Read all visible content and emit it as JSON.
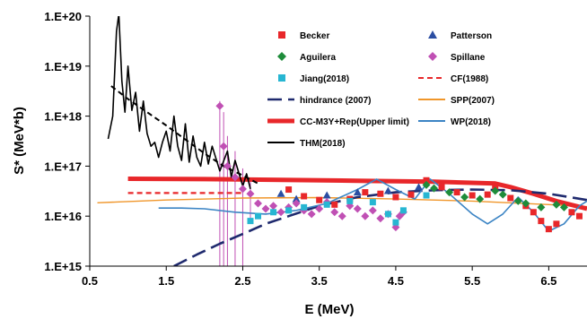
{
  "chart_data": {
    "type": "scatter",
    "xlabel": "E (MeV)",
    "ylabel": "S* (MeV*b)",
    "xlim": [
      0.5,
      7.0
    ],
    "ylim": [
      1000000000000000.0,
      1e+20
    ],
    "yscale": "log",
    "x_ticks": [
      "0.5",
      "1.5",
      "2.5",
      "3.5",
      "4.5",
      "5.5",
      "6.5"
    ],
    "y_ticks": [
      "1.E+15",
      "1.E+16",
      "1.E+17",
      "1.E+18",
      "1.E+19",
      "1.E+20"
    ],
    "grid": false,
    "legend_placement": "top-right",
    "series": [
      {
        "name": "Becker",
        "kind": "marker",
        "marker": "square",
        "color": "#e8272a",
        "points": [
          [
            3.1,
            3.4e+16
          ],
          [
            3.3,
            2.5e+16
          ],
          [
            3.5,
            2.1e+16
          ],
          [
            3.7,
            1.7e+16
          ],
          [
            3.9,
            2.2e+16
          ],
          [
            4.1,
            3e+16
          ],
          [
            4.3,
            2.8e+16
          ],
          [
            4.5,
            2.4e+16
          ],
          [
            4.7,
            2.7e+16
          ],
          [
            4.9,
            5.2e+16
          ],
          [
            5.1,
            3.8e+16
          ],
          [
            5.3,
            3e+16
          ],
          [
            5.5,
            2.6e+16
          ],
          [
            5.7,
            2.7e+16
          ],
          [
            5.8,
            4e+16
          ],
          [
            6.0,
            2.3e+16
          ],
          [
            6.2,
            1.6e+16
          ],
          [
            6.3,
            1.2e+16
          ],
          [
            6.4,
            8000000000000000.0
          ],
          [
            6.5,
            5500000000000000.0
          ],
          [
            6.6,
            7000000000000000.0
          ],
          [
            6.8,
            1.2e+16
          ],
          [
            6.9,
            1e+16
          ]
        ]
      },
      {
        "name": "Patterson",
        "kind": "marker",
        "marker": "triangle",
        "color": "#2b4ea2",
        "points": [
          [
            3.0,
            2.8e+16
          ],
          [
            3.2,
            2.2e+16
          ],
          [
            3.6,
            2.6e+16
          ],
          [
            4.0,
            3e+16
          ],
          [
            4.4,
            3.2e+16
          ],
          [
            4.8,
            3.8e+16
          ]
        ]
      },
      {
        "name": "Aguilera",
        "kind": "marker",
        "marker": "diamond",
        "color": "#1e8c3a",
        "points": [
          [
            4.9,
            4.2e+16
          ],
          [
            5.0,
            3.6e+16
          ],
          [
            5.2,
            3e+16
          ],
          [
            5.4,
            2.4e+16
          ],
          [
            5.6,
            2.2e+16
          ],
          [
            5.8,
            3.2e+16
          ],
          [
            5.9,
            2.7e+16
          ],
          [
            6.1,
            2e+16
          ],
          [
            6.2,
            1.8e+16
          ],
          [
            6.4,
            1.5e+16
          ],
          [
            6.6,
            1.7e+16
          ],
          [
            6.7,
            1.5e+16
          ]
        ]
      },
      {
        "name": "Spillane",
        "kind": "marker",
        "marker": "diamond",
        "color": "#c050b4",
        "points": [
          [
            2.2,
            1.6e+18
          ],
          [
            2.25,
            2.5e+17
          ],
          [
            2.3,
            1e+17
          ],
          [
            2.4,
            6e+16
          ],
          [
            2.5,
            3.5e+16
          ],
          [
            2.6,
            2.8e+16
          ],
          [
            2.7,
            1.8e+16
          ],
          [
            2.8,
            1.4e+16
          ],
          [
            2.9,
            1.6e+16
          ],
          [
            3.0,
            1.2e+16
          ],
          [
            3.1,
            1.5e+16
          ],
          [
            3.2,
            1.8e+16
          ],
          [
            3.3,
            1.3e+16
          ],
          [
            3.4,
            1.1e+16
          ],
          [
            3.5,
            1.4e+16
          ],
          [
            3.6,
            1.9e+16
          ],
          [
            3.7,
            1.2e+16
          ],
          [
            3.8,
            1e+16
          ],
          [
            3.9,
            1.6e+16
          ],
          [
            4.0,
            1.4e+16
          ],
          [
            4.1,
            1e+16
          ],
          [
            4.2,
            1.3e+16
          ],
          [
            4.3,
            9000000000000000.0
          ],
          [
            4.4,
            1.1e+16
          ],
          [
            4.5,
            6000000000000000.0
          ],
          [
            4.55,
            1e+16
          ],
          [
            4.6,
            1.2e+16
          ]
        ]
      },
      {
        "name": "Jiang(2018)",
        "kind": "marker",
        "marker": "square",
        "color": "#27b6d2",
        "points": [
          [
            2.6,
            8000000000000000.0
          ],
          [
            2.7,
            1e+16
          ],
          [
            2.9,
            1.2e+16
          ],
          [
            3.1,
            1.3e+16
          ],
          [
            3.3,
            1.5e+16
          ],
          [
            3.6,
            1.7e+16
          ],
          [
            3.9,
            2e+16
          ],
          [
            4.2,
            1.9e+16
          ],
          [
            4.4,
            1.1e+16
          ],
          [
            4.5,
            7500000000000000.0
          ],
          [
            4.6,
            1.3e+16
          ],
          [
            4.9,
            2.6e+16
          ]
        ]
      },
      {
        "name": "CF(1988)",
        "kind": "line",
        "style": "dashed",
        "color": "#e8272a",
        "width": 2.2,
        "points": [
          [
            1.0,
            2.9e+16
          ],
          [
            2.5,
            2.9e+16
          ]
        ]
      },
      {
        "name": "hindrance (2007)",
        "kind": "line",
        "style": "longdash",
        "color": "#1f2a6e",
        "width": 2.6,
        "points": [
          [
            1.6,
            1000000000000000.0
          ],
          [
            1.9,
            1700000000000000.0
          ],
          [
            2.2,
            2800000000000000.0
          ],
          [
            2.5,
            4400000000000000.0
          ],
          [
            2.8,
            7000000000000000.0
          ],
          [
            3.1,
            1e+16
          ],
          [
            3.5,
            1.6e+16
          ],
          [
            4.0,
            2.4e+16
          ],
          [
            4.5,
            3e+16
          ],
          [
            5.0,
            3.3e+16
          ],
          [
            5.5,
            3.4e+16
          ],
          [
            6.0,
            3.3e+16
          ],
          [
            6.5,
            2.8e+16
          ],
          [
            7.0,
            2.1e+16
          ]
        ]
      },
      {
        "name": "SPP(2007)",
        "kind": "line",
        "style": "solid",
        "color": "#f0962a",
        "width": 1.4,
        "points": [
          [
            0.6,
            1.85e+16
          ],
          [
            1.5,
            2.1e+16
          ],
          [
            2.5,
            2.3e+16
          ],
          [
            3.5,
            2.35e+16
          ],
          [
            4.5,
            2.2e+16
          ],
          [
            5.5,
            2e+16
          ],
          [
            6.5,
            1.7e+16
          ],
          [
            7.0,
            1.55e+16
          ]
        ]
      },
      {
        "name": "CC-M3Y+Rep(Upper limit)",
        "kind": "line",
        "style": "solid",
        "color": "#e8272a",
        "width": 5,
        "points": [
          [
            1.0,
            5.6e+16
          ],
          [
            2.0,
            5.5e+16
          ],
          [
            3.0,
            5.3e+16
          ],
          [
            4.0,
            5.1e+16
          ],
          [
            5.0,
            4.9e+16
          ],
          [
            5.8,
            4.5e+16
          ],
          [
            6.0,
            3.8e+16
          ],
          [
            6.3,
            2.8e+16
          ],
          [
            6.6,
            2e+16
          ],
          [
            7.0,
            1.4e+16
          ]
        ]
      },
      {
        "name": "WP(2018)",
        "kind": "line",
        "style": "solid",
        "color": "#3b84c4",
        "width": 1.6,
        "points": [
          [
            1.4,
            1.45e+16
          ],
          [
            1.7,
            1.45e+16
          ],
          [
            2.0,
            1.4e+16
          ],
          [
            2.4,
            1.2e+16
          ],
          [
            2.8,
            1.1e+16
          ],
          [
            3.2,
            1.3e+16
          ],
          [
            3.6,
            1.8e+16
          ],
          [
            4.0,
            3.4e+16
          ],
          [
            4.25,
            5.5e+16
          ],
          [
            4.5,
            3.4e+16
          ],
          [
            4.75,
            2.2e+16
          ],
          [
            4.95,
            5.5e+16
          ],
          [
            5.2,
            2.8e+16
          ],
          [
            5.5,
            1.1e+16
          ],
          [
            5.7,
            7000000000000000.0
          ],
          [
            5.9,
            1.1e+16
          ],
          [
            6.1,
            2.4e+16
          ],
          [
            6.3,
            1.2e+16
          ],
          [
            6.5,
            5000000000000000.0
          ],
          [
            6.7,
            7000000000000000.0
          ],
          [
            6.9,
            1.6e+16
          ],
          [
            7.0,
            2e+16
          ]
        ]
      },
      {
        "name": "THM(2018)",
        "kind": "line",
        "style": "solid",
        "color": "#000000",
        "width": 1.6,
        "points": [
          [
            0.74,
            3.5e+17
          ],
          [
            0.8,
            1e+18
          ],
          [
            0.85,
            5e+19
          ],
          [
            0.88,
            1.1e+20
          ],
          [
            0.92,
            5e+18
          ],
          [
            0.96,
            1.2e+18
          ],
          [
            1.0,
            1e+19
          ],
          [
            1.05,
            1.3e+18
          ],
          [
            1.1,
            3e+18
          ],
          [
            1.15,
            5e+17
          ],
          [
            1.2,
            2e+18
          ],
          [
            1.25,
            4.5e+17
          ],
          [
            1.3,
            2.5e+17
          ],
          [
            1.35,
            3e+17
          ],
          [
            1.4,
            1.5e+17
          ],
          [
            1.45,
            3e+17
          ],
          [
            1.5,
            5e+17
          ],
          [
            1.55,
            2e+17
          ],
          [
            1.6,
            1e+18
          ],
          [
            1.65,
            2.5e+17
          ],
          [
            1.7,
            1.3e+17
          ],
          [
            1.75,
            7e+17
          ],
          [
            1.8,
            1.2e+17
          ],
          [
            1.85,
            4e+17
          ],
          [
            1.9,
            1.5e+17
          ],
          [
            1.95,
            1e+17
          ],
          [
            2.0,
            3e+17
          ],
          [
            2.05,
            1.1e+17
          ],
          [
            2.1,
            2.5e+17
          ],
          [
            2.2,
            8e+16
          ],
          [
            2.3,
            2e+17
          ],
          [
            2.35,
            6e+16
          ],
          [
            2.4,
            1.3e+17
          ],
          [
            2.5,
            4e+16
          ],
          [
            2.55,
            7e+16
          ],
          [
            2.6,
            3.5e+16
          ]
        ]
      },
      {
        "name": "THM-fit",
        "kind": "line",
        "style": "dashed",
        "color": "#000000",
        "width": 2,
        "points": [
          [
            0.78,
            4e+18
          ],
          [
            1.0,
            2.2e+18
          ],
          [
            1.25,
            1.2e+18
          ],
          [
            1.5,
            6.5e+17
          ],
          [
            1.75,
            3.4e+17
          ],
          [
            2.0,
            1.8e+17
          ],
          [
            2.25,
            1e+17
          ],
          [
            2.5,
            6.5e+16
          ],
          [
            2.7,
            4.5e+16
          ]
        ]
      }
    ],
    "spillane_errorbars": [
      [
        2.2,
        1.6e+18,
        2e+18,
        1000000000000000.0
      ],
      [
        2.25,
        2.5e+17,
        1.2e+18,
        1000000000000000.0
      ],
      [
        2.3,
        1e+17,
        4e+17,
        1000000000000000.0
      ],
      [
        2.4,
        6e+16,
        2e+17,
        1000000000000000.0
      ],
      [
        2.5,
        3.5e+16,
        9e+16,
        1000000000000000.0
      ],
      [
        2.6,
        2.8e+16,
        5e+16,
        8000000000000000.0
      ]
    ]
  },
  "legend": [
    {
      "label": "Becker",
      "marker": "square",
      "color": "#e8272a",
      "col": 0,
      "row": 0
    },
    {
      "label": "Patterson",
      "marker": "triangle",
      "color": "#2b4ea2",
      "col": 1,
      "row": 0
    },
    {
      "label": "Aguilera",
      "marker": "diamond",
      "color": "#1e8c3a",
      "col": 0,
      "row": 1
    },
    {
      "label": "Spillane",
      "marker": "diamond",
      "color": "#c050b4",
      "col": 1,
      "row": 1
    },
    {
      "label": "Jiang(2018)",
      "marker": "square",
      "color": "#27b6d2",
      "col": 0,
      "row": 2
    },
    {
      "label": "CF(1988)",
      "line": "dashed",
      "color": "#e8272a",
      "col": 1,
      "row": 2
    },
    {
      "label": "hindrance (2007)",
      "line": "longdash",
      "color": "#1f2a6e",
      "col": 0,
      "row": 3
    },
    {
      "label": "SPP(2007)",
      "line": "solid",
      "color": "#f0962a",
      "col": 1,
      "row": 3
    },
    {
      "label": "CC-M3Y+Rep(Upper limit)",
      "line": "thick",
      "color": "#e8272a",
      "col": 0,
      "row": 4
    },
    {
      "label": "WP(2018)",
      "line": "solid",
      "color": "#3b84c4",
      "col": 1,
      "row": 4
    },
    {
      "label": "THM(2018)",
      "line": "solid",
      "color": "#000000",
      "col": 0,
      "row": 5
    }
  ]
}
